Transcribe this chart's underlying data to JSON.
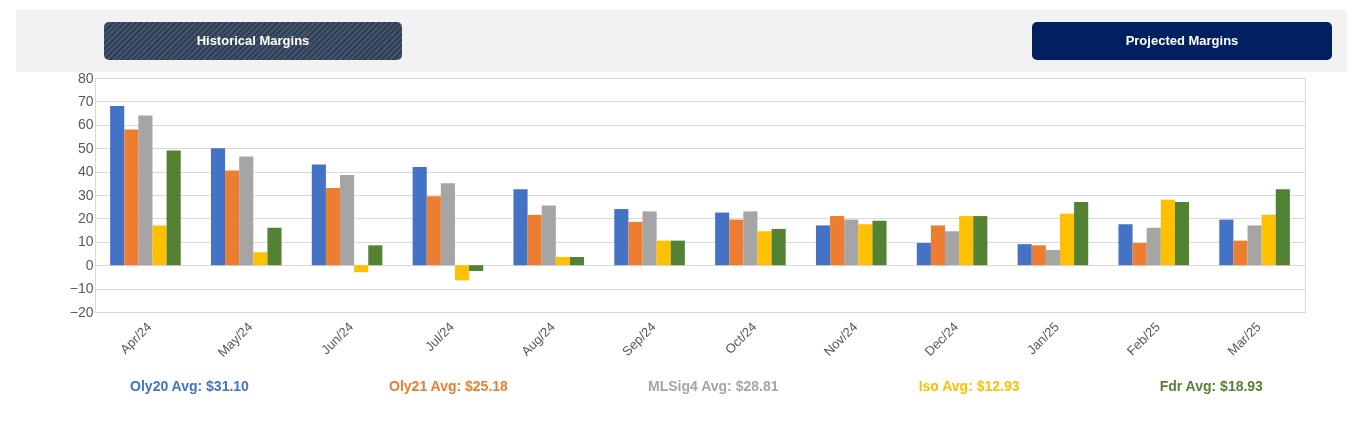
{
  "chart_data": {
    "type": "bar",
    "categories": [
      "Apr/24",
      "May/24",
      "Jun/24",
      "Jul/24",
      "Aug/24",
      "Sep/24",
      "Oct/24",
      "Nov/24",
      "Dec/24",
      "Jan/25",
      "Feb/25",
      "Mar/25"
    ],
    "series": [
      {
        "color": "#4472c4",
        "values": [
          68,
          50,
          43,
          42,
          32.5,
          24,
          22.5,
          17,
          9.5,
          9,
          17.5,
          19.5
        ]
      },
      {
        "color": "#ed7d31",
        "values": [
          58,
          40.5,
          33,
          29.5,
          21.5,
          18.5,
          19.5,
          21,
          17,
          8.5,
          9.5,
          10.5
        ]
      },
      {
        "color": "#a5a5a5",
        "values": [
          64,
          46.5,
          38.5,
          35,
          25.5,
          23,
          23,
          19.5,
          14.5,
          6.5,
          16,
          17
        ]
      },
      {
        "color": "#ffc000",
        "values": [
          17,
          5.5,
          -3,
          -6.5,
          3.5,
          10.5,
          14.5,
          17.5,
          21,
          22,
          28,
          21.5
        ]
      },
      {
        "color": "#548235",
        "values": [
          49,
          16,
          8.5,
          -2.5,
          3.5,
          10.5,
          15.5,
          19,
          21,
          27,
          27,
          32.5
        ]
      }
    ],
    "ylim": [
      -20,
      80
    ],
    "yticks": [
      -20,
      -10,
      0,
      10,
      20,
      30,
      40,
      50,
      60,
      70,
      80
    ],
    "grid": "y",
    "annotations": [
      "Historical  Margins",
      "Projected Margins",
      "Oly20 Avg: $31.10",
      "Oly21 Avg: $25.18",
      "MLSig4 Avg: $28.81",
      "Iso Avg: $12.93",
      "Fdr Avg: $18.93"
    ]
  }
}
